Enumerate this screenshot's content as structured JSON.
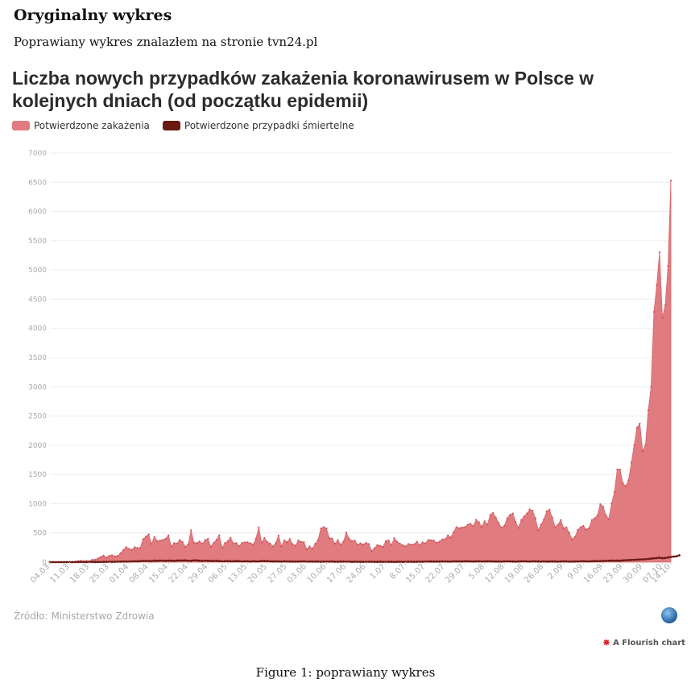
{
  "doc": {
    "heading": "Oryginalny wykres",
    "text": "Poprawiany wykres znalazłem na stronie tvn24.pl",
    "caption": "Figure 1: poprawiany wykres"
  },
  "source_label": "Źródło: Ministerstwo Zdrowia",
  "flourish_label": "A Flourish chart",
  "colors": {
    "infections": "#e07b7f",
    "deaths": "#6b1a12",
    "grid": "#ececec",
    "tick_text": "#aaaaaa"
  },
  "chart_data": {
    "type": "area",
    "title": "Liczba nowych przypadków zakażenia koronawirusem w Polsce w kolejnych dniach (od początku epidemii)",
    "ylim": [
      0,
      7000
    ],
    "yticks": [
      0,
      500,
      1000,
      1500,
      2000,
      2500,
      3000,
      3500,
      4000,
      4500,
      5000,
      5500,
      6000,
      6500,
      7000
    ],
    "xticks": [
      "04.03",
      "11.03",
      "18.03",
      "25.03",
      "01.04",
      "08.04",
      "15.04",
      "22.04",
      "29.04",
      "06.05",
      "13.05",
      "20.05",
      "27.05",
      "03.06",
      "10.06",
      "17.06",
      "24.06",
      "1.07",
      "8.07",
      "15.07",
      "22.07",
      "29.07",
      "5.08",
      "12.08",
      "19.08",
      "26.08",
      "2.09",
      "9.09",
      "16.09",
      "23.09",
      "30.09",
      "07.10",
      "14.10"
    ],
    "legend_position": "top-left",
    "grid": true,
    "series": [
      {
        "name": "Potwierdzone zakażenia",
        "values": [
          0,
          0,
          0,
          2,
          1,
          5,
          5,
          6,
          5,
          9,
          20,
          24,
          17,
          23,
          19,
          41,
          41,
          64,
          89,
          112,
          78,
          111,
          117,
          99,
          107,
          152,
          205,
          257,
          228,
          210,
          256,
          244,
          243,
          392,
          437,
          475,
          311,
          435,
          357,
          370,
          380,
          401,
          461,
          268,
          325,
          318,
          380,
          344,
          263,
          306,
          545,
          336,
          326,
          355,
          316,
          377,
          401,
          263,
          330,
          381,
          460,
          243,
          325,
          356,
          418,
          320,
          330,
          271,
          327,
          339,
          339,
          324,
          300,
          404,
          595,
          334,
          413,
          345,
          317,
          268,
          327,
          454,
          270,
          375,
          343,
          394,
          306,
          282,
          373,
          346,
          342,
          219,
          270,
          230,
          314,
          378,
          575,
          599,
          576,
          409,
          406,
          314,
          378,
          300,
          350,
          506,
          400,
          360,
          370,
          300,
          320,
          304,
          330,
          310,
          190,
          240,
          291,
          280,
          262,
          360,
          371,
          290,
          410,
          350,
          315,
          290,
          270,
          310,
          300,
          305,
          350,
          290,
          340,
          320,
          380,
          375,
          370,
          330,
          350,
          390,
          392,
          458,
          422,
          512,
          600,
          580,
          595,
          600,
          640,
          658,
          615,
          726,
          680,
          605,
          700,
          640,
          809,
          843,
          760,
          670,
          590,
          620,
          750,
          808,
          832,
          690,
          585,
          720,
          780,
          830,
          903,
          880,
          750,
          547,
          640,
          730,
          870,
          900,
          760,
          600,
          640,
          720,
          580,
          597,
          500,
          390,
          430,
          550,
          600,
          620,
          560,
          580,
          720,
          750,
          800,
          990,
          950,
          800,
          740,
          1000,
          1200,
          1587,
          1584,
          1350,
          1300,
          1400,
          1700,
          2000,
          2300,
          2370,
          1900,
          2000,
          2600,
          3000,
          4280,
          4739,
          5300,
          4178,
          4394,
          5068,
          6526
        ],
        "color": "#e07b7f"
      },
      {
        "name": "Potwierdzone przypadki śmiertelne",
        "values": [
          0,
          0,
          0,
          0,
          0,
          0,
          0,
          0,
          0,
          1,
          1,
          2,
          1,
          0,
          1,
          3,
          2,
          3,
          2,
          5,
          4,
          5,
          5,
          6,
          8,
          9,
          10,
          11,
          10,
          12,
          15,
          14,
          17,
          21,
          20,
          21,
          16,
          25,
          22,
          28,
          24,
          22,
          26,
          25,
          20,
          28,
          29,
          27,
          30,
          24,
          22,
          31,
          30,
          25,
          20,
          26,
          23,
          20,
          19,
          22,
          17,
          14,
          15,
          19,
          14,
          13,
          18,
          15,
          12,
          14,
          13,
          11,
          16,
          12,
          14,
          19,
          18,
          17,
          14,
          12,
          13,
          12,
          9,
          14,
          11,
          10,
          11,
          9,
          10,
          12,
          13,
          8,
          10,
          9,
          8,
          11,
          6,
          8,
          9,
          8,
          11,
          7,
          6,
          8,
          9,
          7,
          8,
          5,
          7,
          6,
          5,
          6,
          4,
          7,
          6,
          5,
          4,
          6,
          5,
          3,
          6,
          5,
          4,
          5,
          6,
          4,
          5,
          6,
          7,
          5,
          6,
          8,
          7,
          9,
          10,
          11,
          9,
          10,
          8,
          12,
          11,
          10,
          9,
          13,
          12,
          14,
          11,
          15,
          13,
          12,
          10,
          14,
          13,
          12,
          11,
          13,
          14,
          12,
          10,
          11,
          9,
          12,
          13,
          14,
          10,
          9,
          11,
          13,
          15,
          12,
          10,
          14,
          13,
          11,
          10,
          12,
          9,
          11,
          12,
          10,
          8,
          11,
          13,
          12,
          9,
          10,
          11,
          12,
          14,
          16,
          13,
          12,
          15,
          18,
          17,
          19,
          20,
          22,
          24,
          28,
          23,
          27,
          25,
          30,
          33,
          35,
          37,
          40,
          43,
          45,
          48,
          50,
          55,
          60,
          65,
          70,
          75,
          68,
          72,
          80,
          90,
          95,
          100,
          116
        ],
        "color": "#6b1a12"
      }
    ]
  }
}
